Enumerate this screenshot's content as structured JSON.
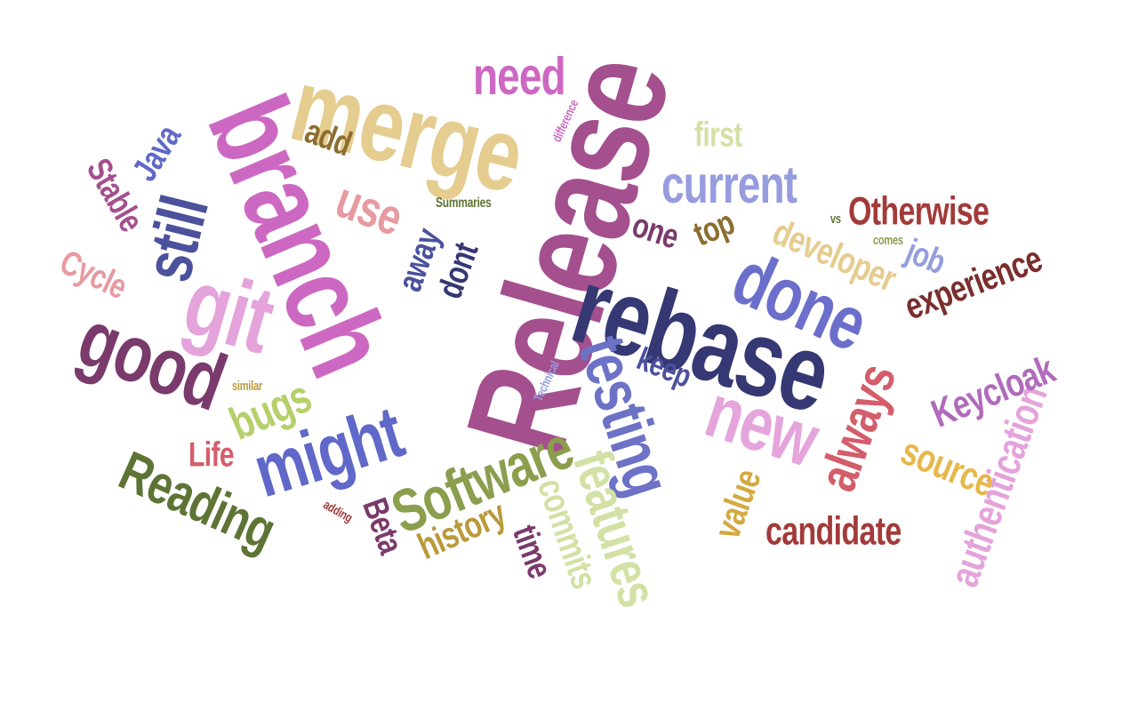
{
  "word_cloud": {
    "background": "#ffffff",
    "words": [
      {
        "id": "release",
        "text": "Release",
        "color": "#a44f8e"
      },
      {
        "id": "rebase",
        "text": "rebase",
        "color": "#363874"
      },
      {
        "id": "merge",
        "text": "merge",
        "color": "#e5cc8f"
      },
      {
        "id": "branch",
        "text": "branch",
        "color": "#cd68c2"
      },
      {
        "id": "git",
        "text": "git",
        "color": "#e4a3da"
      },
      {
        "id": "good",
        "text": "good",
        "color": "#7a3a6c"
      },
      {
        "id": "still",
        "text": "still",
        "color": "#4b519c"
      },
      {
        "id": "might",
        "text": "might",
        "color": "#6068c9"
      },
      {
        "id": "testing",
        "text": "testing",
        "color": "#6c72c6"
      },
      {
        "id": "done",
        "text": "done",
        "color": "#6b6fcb"
      },
      {
        "id": "new",
        "text": "new",
        "color": "#e5a4db"
      },
      {
        "id": "software",
        "text": "Software",
        "color": "#8a9e4d"
      },
      {
        "id": "features",
        "text": "features",
        "color": "#d2e1a4"
      },
      {
        "id": "reading",
        "text": "Reading",
        "color": "#5e7435"
      },
      {
        "id": "current",
        "text": "current",
        "color": "#969cde"
      },
      {
        "id": "need",
        "text": "need",
        "color": "#cd68c2"
      },
      {
        "id": "always",
        "text": "always",
        "color": "#d45d6b"
      },
      {
        "id": "authentication",
        "text": "authentication",
        "color": "#e4a3da"
      },
      {
        "id": "candidate",
        "text": "candidate",
        "color": "#a33a3a"
      },
      {
        "id": "otherwise",
        "text": "Otherwise",
        "color": "#a33a3a"
      },
      {
        "id": "experience",
        "text": "experience",
        "color": "#7a2e2e"
      },
      {
        "id": "keycloak",
        "text": "Keycloak",
        "color": "#b06bbb"
      },
      {
        "id": "source",
        "text": "source",
        "color": "#e6b84a"
      },
      {
        "id": "value",
        "text": "value",
        "color": "#d4a940"
      },
      {
        "id": "developer",
        "text": "developer",
        "color": "#e5cc8f"
      },
      {
        "id": "bugs",
        "text": "bugs",
        "color": "#b5cf6b"
      },
      {
        "id": "commits",
        "text": "commits",
        "color": "#d2e1a4"
      },
      {
        "id": "history",
        "text": "history",
        "color": "#b99a3b"
      },
      {
        "id": "time",
        "text": "time",
        "color": "#7a3a6c"
      },
      {
        "id": "beta",
        "text": "Beta",
        "color": "#7a3a6c"
      },
      {
        "id": "life",
        "text": "Life",
        "color": "#d45d6b"
      },
      {
        "id": "use",
        "text": "use",
        "color": "#e79aa0"
      },
      {
        "id": "away",
        "text": "away",
        "color": "#4b519c"
      },
      {
        "id": "dont",
        "text": "dont",
        "color": "#363874"
      },
      {
        "id": "one",
        "text": "one",
        "color": "#7a3a6c"
      },
      {
        "id": "top",
        "text": "top",
        "color": "#8c6d31"
      },
      {
        "id": "job",
        "text": "job",
        "color": "#969cde"
      },
      {
        "id": "keep",
        "text": "keep",
        "color": "#4b519c"
      },
      {
        "id": "first",
        "text": "first",
        "color": "#d2e1a4"
      },
      {
        "id": "add",
        "text": "add",
        "color": "#8c6d31"
      },
      {
        "id": "java",
        "text": "Java",
        "color": "#6068c9"
      },
      {
        "id": "stable",
        "text": "Stable",
        "color": "#a44f8e"
      },
      {
        "id": "cycle",
        "text": "Cycle",
        "color": "#e79aa0"
      },
      {
        "id": "summaries",
        "text": "Summaries",
        "color": "#5e7435"
      },
      {
        "id": "difference",
        "text": "difference",
        "color": "#cd68c2"
      },
      {
        "id": "vs",
        "text": "vs",
        "color": "#5e7435"
      },
      {
        "id": "comes",
        "text": "comes",
        "color": "#8a9e4d"
      },
      {
        "id": "technical",
        "text": "Technical",
        "color": "#969cde"
      },
      {
        "id": "similar",
        "text": "similar",
        "color": "#b99a3b"
      },
      {
        "id": "adding",
        "text": "adding",
        "color": "#a33a3a"
      }
    ]
  }
}
